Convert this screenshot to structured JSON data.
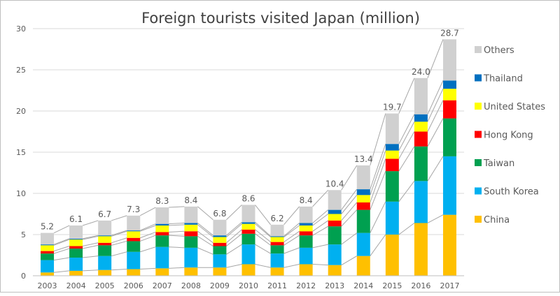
{
  "chart_data": {
    "type": "bar",
    "stacked": true,
    "title": "Foreign tourists visited Japan (million)",
    "xlabel": "",
    "ylabel": "",
    "ylim": [
      0,
      30
    ],
    "yticks": [
      0,
      5,
      10,
      15,
      20,
      25,
      30
    ],
    "grid": true,
    "legend_position": "right",
    "categories": [
      "2003",
      "2004",
      "2005",
      "2006",
      "2007",
      "2008",
      "2009",
      "2010",
      "2011",
      "2012",
      "2013",
      "2014",
      "2015",
      "2016",
      "2017"
    ],
    "series": [
      {
        "name": "China",
        "color": "#ffc000",
        "values": [
          0.4,
          0.6,
          0.7,
          0.8,
          0.9,
          1.0,
          1.0,
          1.4,
          1.0,
          1.4,
          1.3,
          2.4,
          5.0,
          6.4,
          7.4
        ]
      },
      {
        "name": "South Korea",
        "color": "#00b0f0",
        "values": [
          1.5,
          1.6,
          1.7,
          2.1,
          2.6,
          2.4,
          1.6,
          2.4,
          1.7,
          2.0,
          2.5,
          2.8,
          4.0,
          5.1,
          7.1
        ]
      },
      {
        "name": "Taiwan",
        "color": "#00a050",
        "values": [
          0.8,
          1.1,
          1.3,
          1.3,
          1.4,
          1.4,
          1.0,
          1.3,
          1.0,
          1.5,
          2.2,
          2.8,
          3.7,
          4.2,
          4.6
        ]
      },
      {
        "name": "Hong Kong",
        "color": "#ff0000",
        "values": [
          0.3,
          0.3,
          0.3,
          0.4,
          0.4,
          0.6,
          0.4,
          0.5,
          0.4,
          0.5,
          0.7,
          0.9,
          1.5,
          1.8,
          2.2
        ]
      },
      {
        "name": "United States",
        "color": "#ffff00",
        "values": [
          0.7,
          0.8,
          0.8,
          0.8,
          0.8,
          0.8,
          0.7,
          0.7,
          0.6,
          0.7,
          0.8,
          0.9,
          1.0,
          1.2,
          1.4
        ]
      },
      {
        "name": "Thailand",
        "color": "#0070c0",
        "values": [
          0.1,
          0.1,
          0.1,
          0.1,
          0.2,
          0.2,
          0.2,
          0.2,
          0.1,
          0.3,
          0.5,
          0.7,
          0.8,
          0.9,
          1.0
        ]
      },
      {
        "name": "Others",
        "color": "#d0d0d0",
        "values": [
          1.4,
          1.6,
          1.8,
          1.8,
          2.0,
          2.0,
          1.9,
          2.1,
          1.4,
          2.0,
          2.4,
          2.9,
          3.7,
          4.4,
          5.0
        ]
      }
    ],
    "totals": [
      5.2,
      6.1,
      6.7,
      7.3,
      8.3,
      8.4,
      6.8,
      8.6,
      6.2,
      8.4,
      10.4,
      13.4,
      19.7,
      24.0,
      28.7
    ],
    "total_labels": [
      "5.2",
      "6.1",
      "6.7",
      "7.3",
      "8.3",
      "8.4",
      "6.8",
      "8.6",
      "6.2",
      "8.4",
      "10.4",
      "13.4",
      "19.7",
      "24.0",
      "28.7"
    ]
  }
}
